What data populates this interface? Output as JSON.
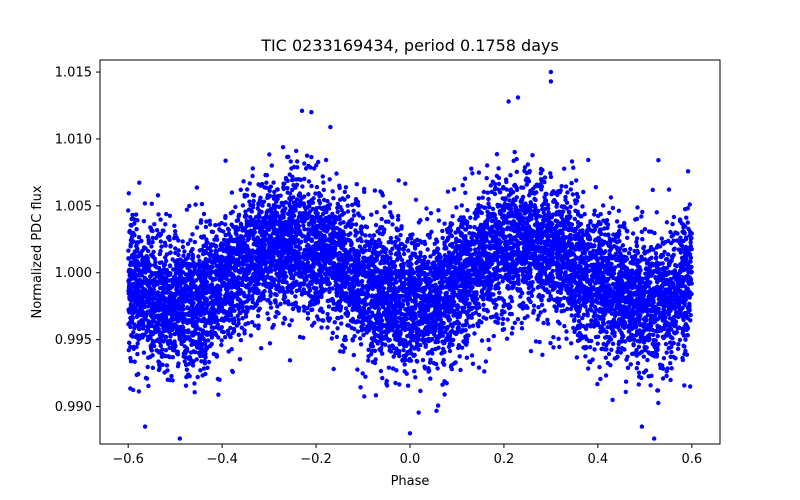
{
  "chart_data": {
    "type": "scatter",
    "title": "TIC 0233169434, period 0.1758 days",
    "xlabel": "Phase",
    "ylabel": "Normalized PDC flux",
    "xlim": [
      -0.66,
      0.66
    ],
    "ylim": [
      0.9872,
      1.0159
    ],
    "xticks": [
      -0.6,
      -0.4,
      -0.2,
      0.0,
      0.2,
      0.4,
      0.6
    ],
    "xtick_labels": [
      "−0.6",
      "−0.4",
      "−0.2",
      "0.0",
      "0.2",
      "0.4",
      "0.6"
    ],
    "yticks": [
      0.99,
      0.995,
      1.0,
      1.005,
      1.01,
      1.015
    ],
    "ytick_labels": [
      "0.990",
      "0.995",
      "1.000",
      "1.005",
      "1.010",
      "1.015"
    ],
    "grid": false,
    "marker_color": "#0000ff",
    "series": [
      {
        "x_range": [
          -0.6,
          0.6
        ],
        "model": "1 + 0.0022*cos(4*pi*(phase - 0.25))",
        "scatter_sd": 0.0026,
        "n_points": 9000,
        "outliers": [
          {
            "x": 0.3,
            "y": 1.015
          },
          {
            "x": 0.3,
            "y": 1.0143
          },
          {
            "x": 0.21,
            "y": 1.0128
          },
          {
            "x": 0.23,
            "y": 1.0131
          },
          {
            "x": -0.21,
            "y": 1.012
          },
          {
            "x": -0.23,
            "y": 1.0121
          },
          {
            "x": -0.49,
            "y": 0.9876
          },
          {
            "x": 0.52,
            "y": 0.9876
          },
          {
            "x": 0.0,
            "y": 0.988
          }
        ]
      }
    ]
  }
}
